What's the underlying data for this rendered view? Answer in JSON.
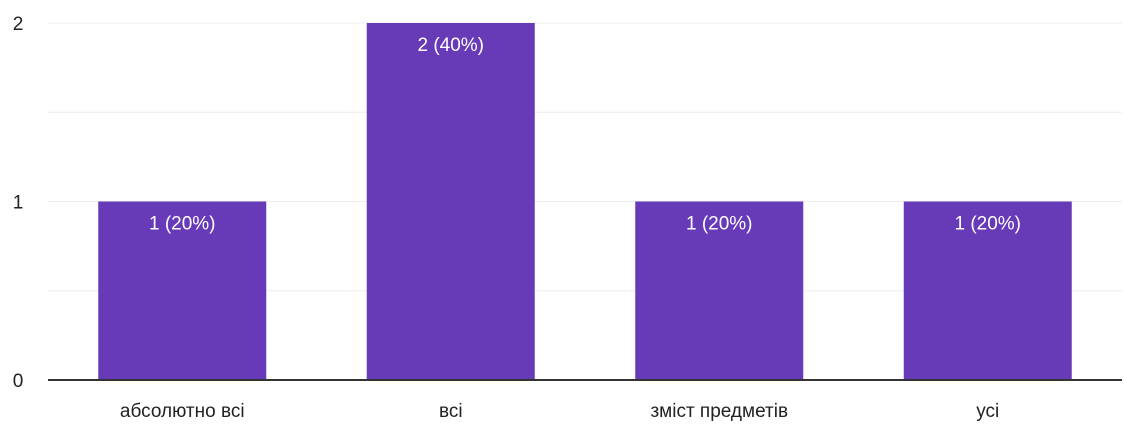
{
  "chart_data": {
    "type": "bar",
    "categories": [
      "абсолютно всі",
      "всі",
      "зміст предметів",
      "усі"
    ],
    "values": [
      1,
      2,
      1,
      1
    ],
    "data_labels": [
      "1 (20%)",
      "2 (40%)",
      "1 (20%)",
      "1 (20%)"
    ],
    "y_ticks": [
      "0",
      "1",
      "2"
    ],
    "ylim": [
      0,
      2
    ],
    "grid": true,
    "bar_color": "#673ab7",
    "axis_color": "#333333",
    "grid_color": "#eeeeee",
    "label_color": "#ffffff",
    "text_color": "#222222"
  }
}
